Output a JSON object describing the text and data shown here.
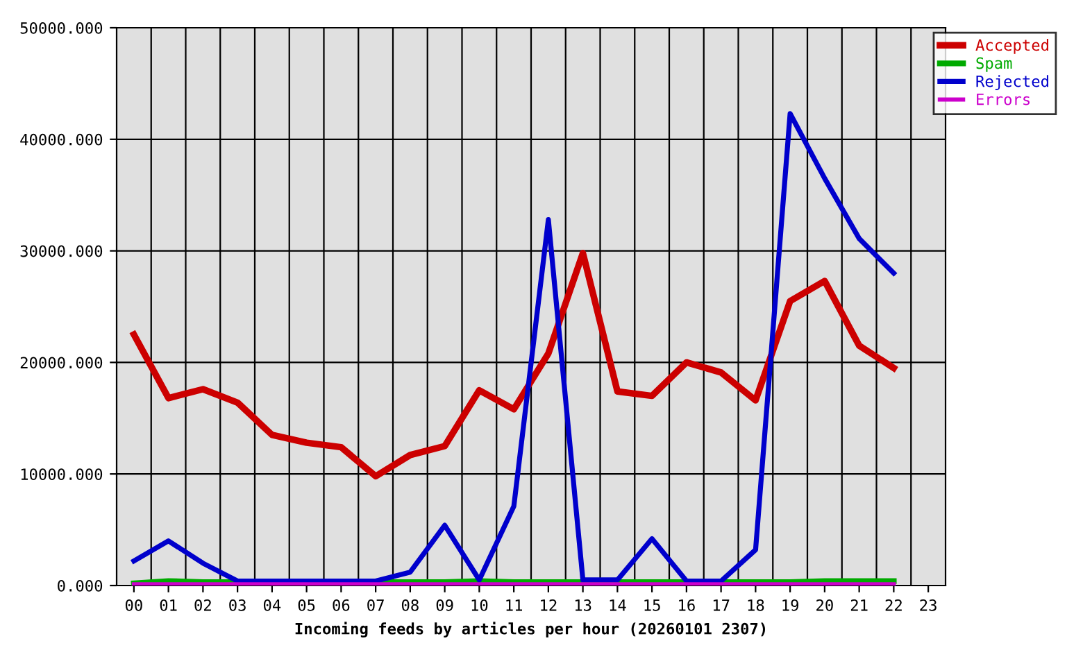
{
  "chart_data": {
    "type": "line",
    "xlabel": "Incoming feeds by articles per hour (20260101 2307)",
    "categories": [
      "00",
      "01",
      "02",
      "03",
      "04",
      "05",
      "06",
      "07",
      "08",
      "09",
      "10",
      "11",
      "12",
      "13",
      "14",
      "15",
      "16",
      "17",
      "18",
      "19",
      "20",
      "21",
      "22",
      "23"
    ],
    "series": [
      {
        "name": "Accepted",
        "color": "#cc0000",
        "values": [
          22500,
          16800,
          17600,
          16400,
          13500,
          12800,
          12400,
          9800,
          11700,
          12500,
          17500,
          15800,
          20800,
          29800,
          17400,
          17000,
          20000,
          19100,
          16600,
          25500,
          27300,
          21500,
          19500,
          null
        ]
      },
      {
        "name": "Spam",
        "color": "#00aa00",
        "values": [
          200,
          400,
          300,
          300,
          300,
          300,
          300,
          300,
          300,
          300,
          400,
          300,
          300,
          300,
          300,
          300,
          300,
          300,
          300,
          300,
          400,
          400,
          400,
          null
        ]
      },
      {
        "name": "Rejected",
        "color": "#0000cc",
        "values": [
          2200,
          4000,
          2000,
          400,
          400,
          400,
          400,
          400,
          1200,
          5400,
          500,
          7100,
          32800,
          500,
          500,
          4200,
          400,
          400,
          3200,
          42300,
          36500,
          31100,
          28000,
          null
        ]
      },
      {
        "name": "Errors",
        "color": "#cc00cc",
        "values": [
          100,
          100,
          100,
          100,
          100,
          100,
          100,
          100,
          100,
          100,
          100,
          100,
          100,
          100,
          100,
          100,
          100,
          100,
          100,
          100,
          100,
          100,
          100,
          null
        ]
      }
    ],
    "ylim": [
      0,
      50000
    ],
    "yticks": [
      {
        "value": 0,
        "label": "0.000"
      },
      {
        "value": 10000,
        "label": "10000.000"
      },
      {
        "value": 20000,
        "label": "20000.000"
      },
      {
        "value": 30000,
        "label": "30000.000"
      },
      {
        "value": 40000,
        "label": "40000.000"
      },
      {
        "value": 50000,
        "label": "50000.000"
      }
    ],
    "grid": true,
    "legend": "top right",
    "line_style": "solid"
  }
}
